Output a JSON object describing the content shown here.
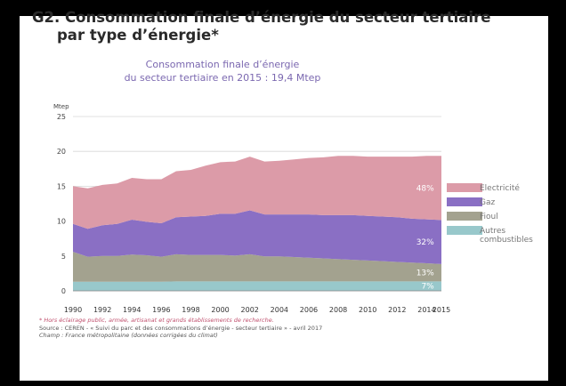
{
  "title_line1": "G2. Consommation finale d’énergie du secteur tertiaire",
  "title_line2": "par type d’énergie*",
  "subtitle_line1": "Consommation finale d’énergie",
  "subtitle_line2": "du secteur tertiaire en 2015 : 19,4 Mtep",
  "footnote": "* Hors éclairage public, armée, artisanat et grands établissements de recherche.",
  "source": "Source : CEREN - « Suivi du parc et des consommations d’énergie - secteur tertiaire » - avril 2017",
  "champ": "Champ : France métropolitaine (données corrigées du climat)",
  "chart_data": {
    "type": "area",
    "stacked": true,
    "ylabel": "Mtep",
    "ylim": [
      0,
      25
    ],
    "yticks": [
      0,
      5,
      10,
      15,
      20,
      25
    ],
    "xticks": [
      1990,
      1992,
      1994,
      1996,
      1998,
      2000,
      2002,
      2004,
      2006,
      2008,
      2010,
      2012,
      2014,
      2015
    ],
    "grid": true,
    "legend_position": "right",
    "x": [
      1990,
      1991,
      1992,
      1993,
      1994,
      1995,
      1996,
      1997,
      1998,
      1999,
      2000,
      2001,
      2002,
      2003,
      2004,
      2005,
      2006,
      2007,
      2008,
      2009,
      2010,
      2011,
      2012,
      2013,
      2014,
      2015
    ],
    "series": [
      {
        "name": "Autres combustibles",
        "color": "#98c8cb",
        "label": "7%",
        "values": [
          1.3,
          1.3,
          1.3,
          1.3,
          1.3,
          1.3,
          1.3,
          1.35,
          1.35,
          1.35,
          1.35,
          1.35,
          1.35,
          1.35,
          1.35,
          1.35,
          1.35,
          1.35,
          1.35,
          1.35,
          1.35,
          1.35,
          1.35,
          1.35,
          1.35,
          1.35
        ]
      },
      {
        "name": "Fioul",
        "color": "#a3a28f",
        "label": "13%",
        "values": [
          4.3,
          3.6,
          3.7,
          3.7,
          3.9,
          3.8,
          3.6,
          3.9,
          3.8,
          3.8,
          3.8,
          3.7,
          3.9,
          3.6,
          3.6,
          3.5,
          3.4,
          3.3,
          3.2,
          3.1,
          3.0,
          2.9,
          2.8,
          2.7,
          2.6,
          2.5
        ]
      },
      {
        "name": "Gaz",
        "color": "#8a6fc4",
        "label": "32%",
        "values": [
          4.0,
          4.0,
          4.4,
          4.6,
          5.0,
          4.8,
          4.8,
          5.3,
          5.5,
          5.6,
          5.9,
          6.0,
          6.3,
          6.0,
          6.0,
          6.1,
          6.2,
          6.2,
          6.3,
          6.4,
          6.4,
          6.4,
          6.4,
          6.3,
          6.3,
          6.3
        ]
      },
      {
        "name": "Electricité",
        "color": "#dc9ba8",
        "label": "48%",
        "values": [
          5.4,
          5.8,
          5.8,
          5.8,
          6.0,
          6.1,
          6.3,
          6.6,
          6.7,
          7.2,
          7.4,
          7.5,
          7.7,
          7.6,
          7.7,
          7.9,
          8.1,
          8.3,
          8.5,
          8.5,
          8.5,
          8.6,
          8.7,
          8.9,
          9.1,
          9.2
        ]
      }
    ]
  }
}
